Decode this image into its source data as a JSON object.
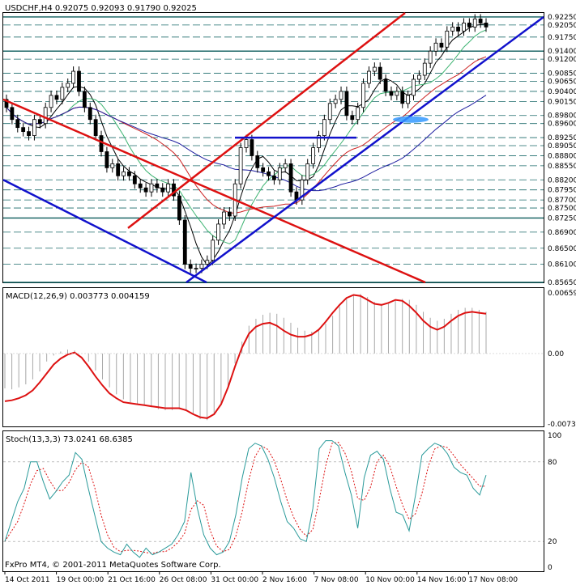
{
  "chart_data": {
    "type": "candlestick",
    "symbol_header": "USDCHF,H4  0.92075 0.92093 0.91790 0.92025",
    "copyright": "FxPro MT4, © 2001-2011 MetaQuotes Software Corp.",
    "price_axis": {
      "range": [
        0.8565,
        0.9235
      ],
      "labels": [
        "0.92250",
        "0.92050",
        "0.91750",
        "0.91400",
        "0.91200",
        "0.90850",
        "0.90650",
        "0.90400",
        "0.90150",
        "0.89800",
        "0.89600",
        "0.89250",
        "0.89050",
        "0.88800",
        "0.88550",
        "0.88200",
        "0.87950",
        "0.87700",
        "0.87500",
        "0.87250",
        "0.86900",
        "0.86500",
        "0.86100",
        "0.85650"
      ],
      "highlight_levels": [
        "0.92250",
        "0.91400",
        "0.87250",
        "0.85650"
      ]
    },
    "time_axis_labels": [
      "14 Oct 2011",
      "19 Oct 00:00",
      "21 Oct 16:00",
      "26 Oct 08:00",
      "31 Oct 00:00",
      "2 Nov 16:00",
      "7 Nov 08:00",
      "10 Nov 00:00",
      "14 Nov 16:00",
      "17 Nov 08:00"
    ],
    "candles_close": [
      0.9,
      0.897,
      0.895,
      0.894,
      0.893,
      0.897,
      0.896,
      0.9,
      0.903,
      0.902,
      0.905,
      0.906,
      0.909,
      0.904,
      0.9,
      0.897,
      0.893,
      0.889,
      0.885,
      0.886,
      0.883,
      0.884,
      0.883,
      0.881,
      0.88,
      0.879,
      0.881,
      0.88,
      0.879,
      0.881,
      0.878,
      0.872,
      0.861,
      0.86,
      0.86,
      0.861,
      0.862,
      0.867,
      0.871,
      0.874,
      0.873,
      0.881,
      0.89,
      0.892,
      0.888,
      0.885,
      0.884,
      0.883,
      0.882,
      0.885,
      0.886,
      0.879,
      0.877,
      0.882,
      0.886,
      0.89,
      0.893,
      0.897,
      0.901,
      0.902,
      0.904,
      0.898,
      0.897,
      0.9,
      0.906,
      0.909,
      0.91,
      0.907,
      0.904,
      0.903,
      0.904,
      0.901,
      0.903,
      0.907,
      0.908,
      0.911,
      0.914,
      0.916,
      0.915,
      0.919,
      0.92,
      0.919,
      0.921,
      0.92,
      0.922,
      0.921,
      0.92
    ],
    "macd": {
      "label": "MACD(12,26,9) 0.003773 0.004159",
      "range": [
        -0.00733,
        0.00659
      ],
      "labels": [
        "0.00659",
        "0.00",
        "-0.00733"
      ],
      "histogram": [
        -0.0035,
        -0.0036,
        -0.0034,
        -0.0031,
        -0.0026,
        -0.0018,
        -0.0008,
        -0.0002,
        0.0002,
        0.0004,
        0.0003,
        0.0,
        -0.0008,
        -0.0017,
        -0.0026,
        -0.0034,
        -0.0041,
        -0.0046,
        -0.0049,
        -0.0051,
        -0.0052,
        -0.0054,
        -0.0056,
        -0.0057,
        -0.0057,
        -0.0056,
        -0.0058,
        -0.0061,
        -0.0066,
        -0.0067,
        -0.0062,
        -0.0052,
        -0.0034,
        -0.001,
        0.0012,
        0.0028,
        0.0035,
        0.0039,
        0.0041,
        0.004,
        0.0036,
        0.0031,
        0.0026,
        0.0023,
        0.0022,
        0.0024,
        0.003,
        0.0038,
        0.0047,
        0.0055,
        0.0059,
        0.006,
        0.0057,
        0.0052,
        0.0049,
        0.005,
        0.0053,
        0.0055,
        0.0054,
        0.0049,
        0.0042,
        0.0036,
        0.0033,
        0.0035,
        0.004,
        0.0044,
        0.0046,
        0.0046,
        0.0044,
        0.0042
      ],
      "signal": [
        -0.0048,
        -0.0047,
        -0.0045,
        -0.0042,
        -0.0037,
        -0.0029,
        -0.002,
        -0.0011,
        -0.0005,
        -0.0001,
        0.0001,
        -0.0004,
        -0.0013,
        -0.0023,
        -0.0032,
        -0.004,
        -0.0045,
        -0.0049,
        -0.005,
        -0.0051,
        -0.0052,
        -0.0053,
        -0.0054,
        -0.0055,
        -0.0055,
        -0.0055,
        -0.0057,
        -0.0061,
        -0.0064,
        -0.0065,
        -0.0061,
        -0.0051,
        -0.0034,
        -0.0013,
        0.0006,
        0.002,
        0.0027,
        0.003,
        0.0031,
        0.0028,
        0.0023,
        0.0019,
        0.0017,
        0.0017,
        0.0019,
        0.0024,
        0.0032,
        0.0041,
        0.0049,
        0.0056,
        0.0059,
        0.0058,
        0.0054,
        0.005,
        0.0049,
        0.0051,
        0.0054,
        0.0053,
        0.0048,
        0.0041,
        0.0033,
        0.0027,
        0.0024,
        0.0027,
        0.0033,
        0.0038,
        0.0041,
        0.0042,
        0.0041,
        0.004
      ]
    },
    "stoch": {
      "label": "Stoch(13,3,3) 73.0241 68.6385",
      "range": [
        0,
        100
      ],
      "labels": [
        "100",
        "80",
        "20",
        "0"
      ],
      "main": [
        20,
        35,
        50,
        60,
        80,
        80,
        65,
        52,
        58,
        65,
        70,
        87,
        82,
        60,
        40,
        20,
        15,
        12,
        10,
        18,
        12,
        8,
        15,
        10,
        12,
        15,
        18,
        25,
        35,
        72,
        45,
        25,
        15,
        10,
        12,
        20,
        40,
        68,
        90,
        94,
        92,
        82,
        68,
        50,
        35,
        30,
        22,
        20,
        45,
        90,
        96,
        96,
        92,
        72,
        55,
        30,
        68,
        85,
        88,
        82,
        60,
        42,
        40,
        28,
        55,
        85,
        90,
        94,
        92,
        86,
        76,
        72,
        70,
        60,
        55,
        70
      ]
    }
  }
}
